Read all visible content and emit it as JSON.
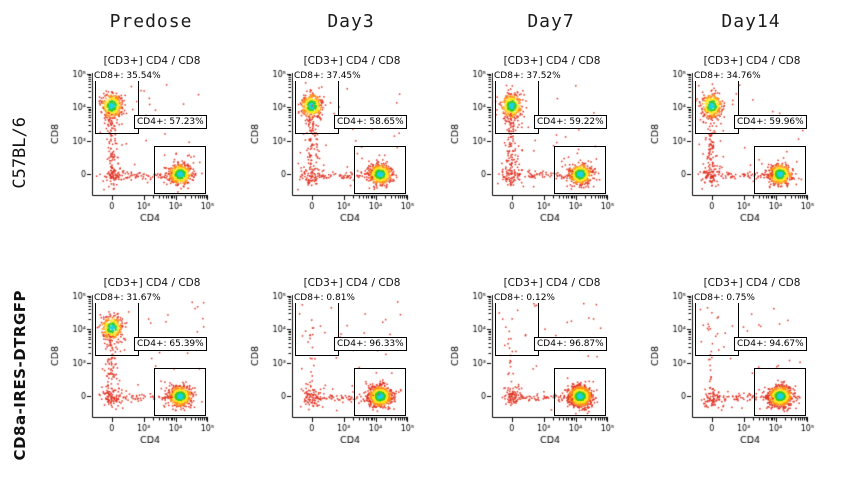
{
  "figure": {
    "columns": [
      "Predose",
      "Day3",
      "Day7",
      "Day14"
    ],
    "rows": [
      {
        "label": "C57BL/6"
      },
      {
        "label": "CD8a-IRES-DTRGFP"
      }
    ]
  },
  "chart_data": {
    "type": "scatter",
    "subtype": "flow-cytometry-dot-plot",
    "x_axis": {
      "label": "CD4",
      "ticks": [
        "0",
        "10³",
        "10⁴",
        "10⁵"
      ]
    },
    "y_axis": {
      "label": "CD8",
      "ticks": [
        "0",
        "10³",
        "10⁴",
        "10⁵"
      ]
    },
    "panels": [
      {
        "row": "C57BL/6",
        "column": "Predose",
        "title": "[CD3+] CD4 / CD8",
        "cd8_gate": {
          "label": "CD8+: 35.54%",
          "pct": 35.54
        },
        "cd4_gate": {
          "label": "CD4+: 57.23%",
          "pct": 57.23
        }
      },
      {
        "row": "C57BL/6",
        "column": "Day3",
        "title": "[CD3+] CD4 / CD8",
        "cd8_gate": {
          "label": "CD8+: 37.45%",
          "pct": 37.45
        },
        "cd4_gate": {
          "label": "CD4+: 58.65%",
          "pct": 58.65
        }
      },
      {
        "row": "C57BL/6",
        "column": "Day7",
        "title": "[CD3+] CD4 / CD8",
        "cd8_gate": {
          "label": "CD8+: 37.52%",
          "pct": 37.52
        },
        "cd4_gate": {
          "label": "CD4+: 59.22%",
          "pct": 59.22
        }
      },
      {
        "row": "C57BL/6",
        "column": "Day14",
        "title": "[CD3+] CD4 / CD8",
        "cd8_gate": {
          "label": "CD8+: 34.76%",
          "pct": 34.76
        },
        "cd4_gate": {
          "label": "CD4+: 59.96%",
          "pct": 59.96
        }
      },
      {
        "row": "CD8a-IRES-DTRGFP",
        "column": "Predose",
        "title": "[CD3+] CD4 / CD8",
        "cd8_gate": {
          "label": "CD8+: 31.67%",
          "pct": 31.67
        },
        "cd4_gate": {
          "label": "CD4+: 65.39%",
          "pct": 65.39
        }
      },
      {
        "row": "CD8a-IRES-DTRGFP",
        "column": "Day3",
        "title": "[CD3+] CD4 / CD8",
        "cd8_gate": {
          "label": "CD8+: 0.81%",
          "pct": 0.81
        },
        "cd4_gate": {
          "label": "CD4+: 96.33%",
          "pct": 96.33
        }
      },
      {
        "row": "CD8a-IRES-DTRGFP",
        "column": "Day7",
        "title": "[CD3+] CD4 / CD8",
        "cd8_gate": {
          "label": "CD8+: 0.12%",
          "pct": 0.12
        },
        "cd4_gate": {
          "label": "CD4+: 96.87%",
          "pct": 96.87
        }
      },
      {
        "row": "CD8a-IRES-DTRGFP",
        "column": "Day14",
        "title": "[CD3+] CD4 / CD8",
        "cd8_gate": {
          "label": "CD8+: 0.75%",
          "pct": 0.75
        },
        "cd4_gate": {
          "label": "CD4+: 94.67%",
          "pct": 94.67
        }
      }
    ],
    "colors": {
      "dot_outer": "#e03323",
      "dot_mid": "#ff8c1a",
      "dot_inner": "#ffe51e",
      "dot_core": "#2ecc2e",
      "dot_center": "#19d3e8",
      "gate": "#000000",
      "axis": "#000000"
    }
  }
}
